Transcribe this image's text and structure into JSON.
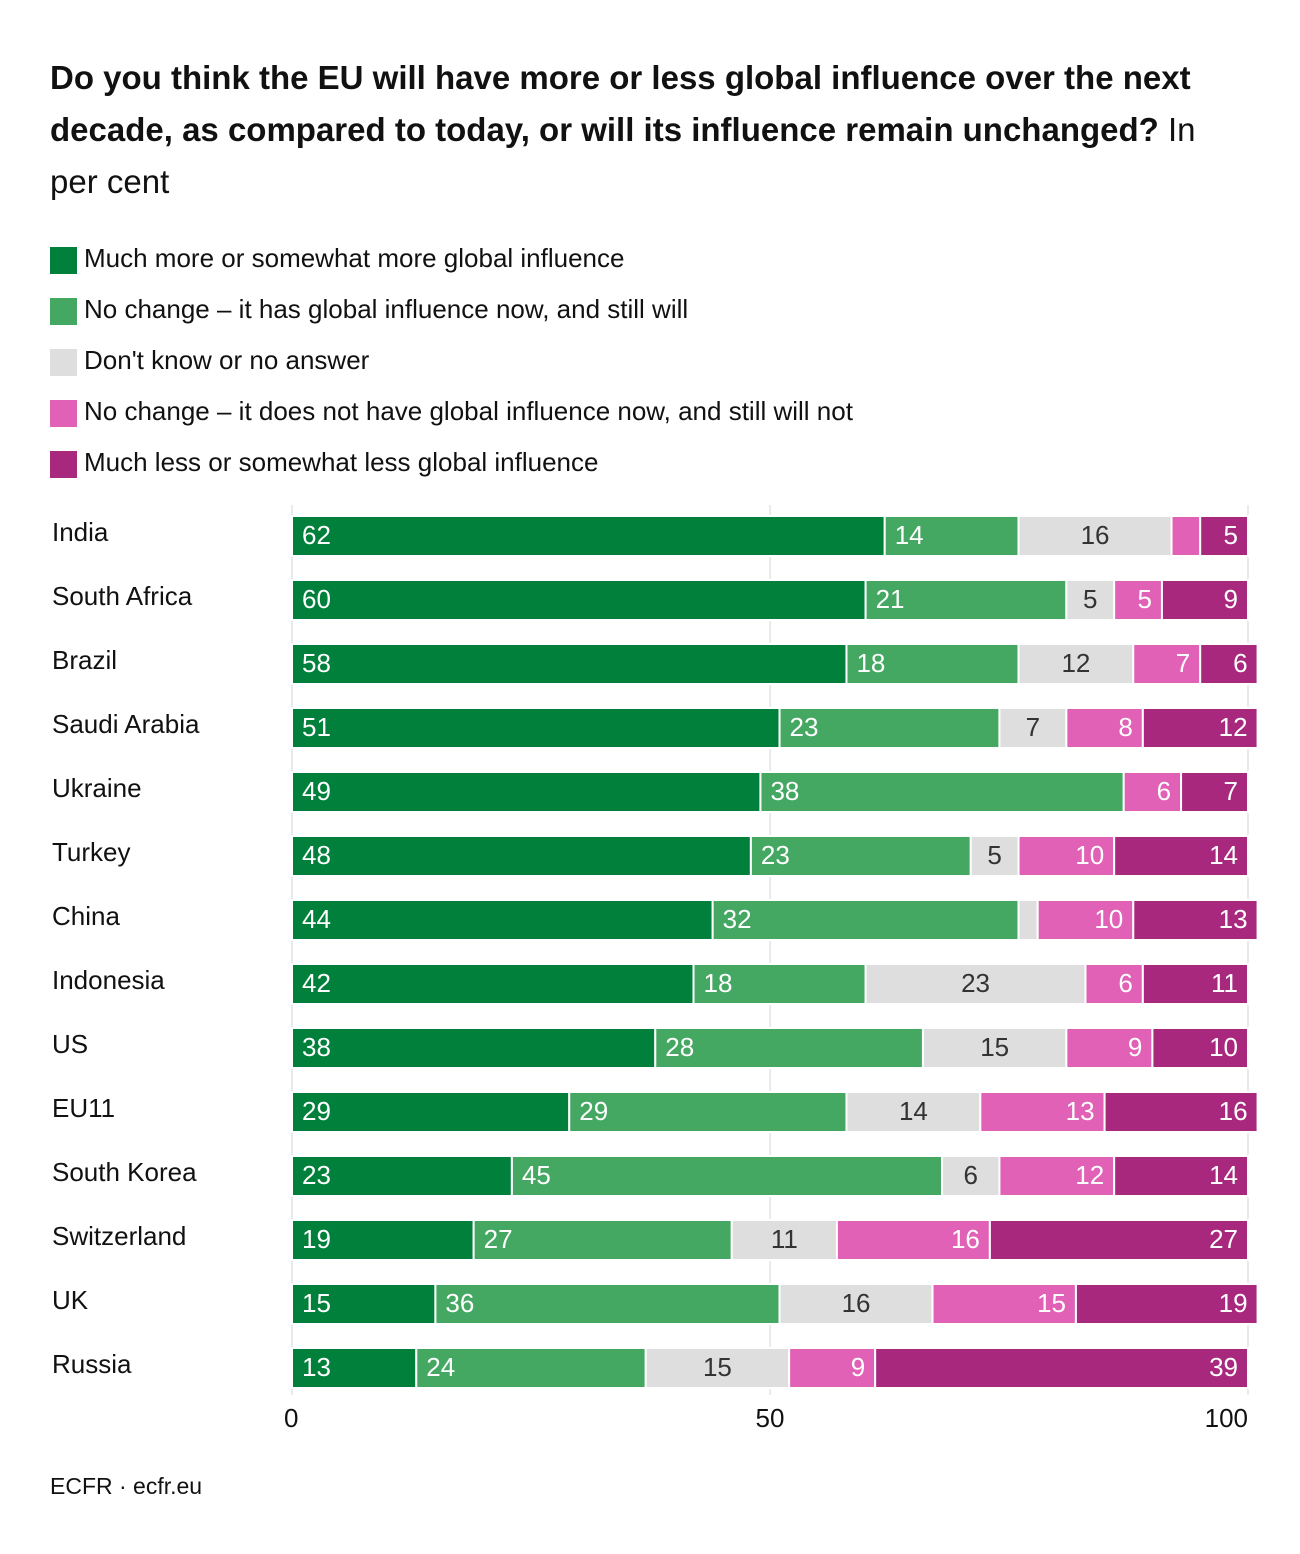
{
  "chart_data": {
    "type": "stacked-bar",
    "title": "Do you think the EU will have more or less global influence over the next decade, as compared to today, or will its influence remain unchanged?",
    "subtitle": "In per cent",
    "source": "ECFR · ecfr.eu",
    "categories": [
      "India",
      "South Africa",
      "Brazil",
      "Saudi Arabia",
      "Ukraine",
      "Turkey",
      "China",
      "Indonesia",
      "US",
      "EU11",
      "South Korea",
      "Switzerland",
      "UK",
      "Russia"
    ],
    "series": [
      {
        "name": "Much more or somewhat more global influence",
        "color": "#00803a",
        "values": [
          62,
          60,
          58,
          51,
          49,
          48,
          44,
          42,
          38,
          29,
          23,
          19,
          15,
          13
        ]
      },
      {
        "name": "No change – it has global influence now, and still will",
        "color": "#45a862",
        "values": [
          14,
          21,
          18,
          23,
          38,
          23,
          32,
          18,
          28,
          29,
          45,
          27,
          36,
          24
        ]
      },
      {
        "name": "Don't know or no answer",
        "color": "#dedede",
        "values": [
          16,
          5,
          12,
          7,
          0,
          5,
          2,
          23,
          15,
          14,
          6,
          11,
          16,
          15
        ]
      },
      {
        "name": "No change – it does not have global influence now, and still will not",
        "color": "#e061b6",
        "values": [
          3,
          5,
          7,
          8,
          6,
          10,
          10,
          6,
          9,
          13,
          12,
          16,
          15,
          9
        ]
      },
      {
        "name": "Much less or somewhat less global influence",
        "color": "#a8287e",
        "values": [
          5,
          9,
          6,
          12,
          7,
          14,
          13,
          11,
          10,
          16,
          14,
          27,
          19,
          39
        ]
      }
    ],
    "xlim": [
      0,
      100
    ],
    "xticks": [
      0,
      50,
      100
    ],
    "grid": true
  }
}
